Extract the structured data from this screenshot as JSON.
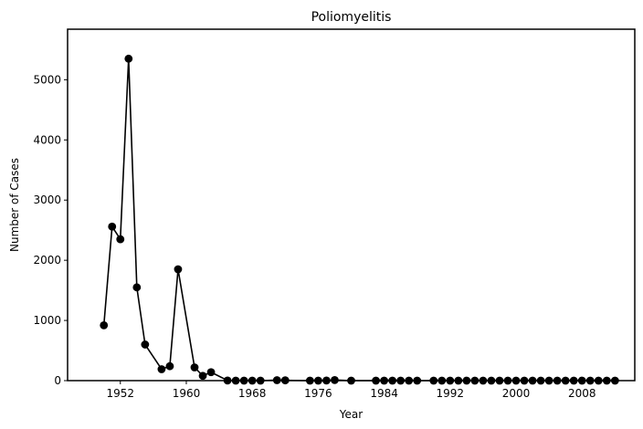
{
  "chart_data": {
    "type": "line",
    "title": "Poliomyelitis",
    "xlabel": "Year",
    "ylabel": "Number of Cases",
    "xlim": [
      1945.6,
      2014.4
    ],
    "ylim": [
      0,
      5840
    ],
    "x_ticks": [
      1952,
      1960,
      1968,
      1976,
      1984,
      1992,
      2000,
      2008
    ],
    "y_ticks": [
      0,
      1000,
      2000,
      3000,
      4000,
      5000
    ],
    "grid": false,
    "legend": "none",
    "line_color": "#000000",
    "marker": "circle",
    "series": [
      {
        "x": [
          1950,
          1951,
          1952,
          1953,
          1954,
          1955,
          1957,
          1958,
          1959,
          1961,
          1962,
          1963,
          1965,
          1966,
          1967,
          1968,
          1969,
          1971,
          1972,
          1975,
          1976,
          1977,
          1978,
          1980,
          1983,
          1984,
          1985,
          1986,
          1987,
          1988,
          1990,
          1991,
          1992,
          1993,
          1994,
          1995,
          1996,
          1997,
          1998,
          1999,
          2000,
          2001,
          2002,
          2003,
          2004,
          2005,
          2006,
          2007,
          2008,
          2009,
          2010,
          2011,
          2012
        ],
        "y": [
          920,
          2560,
          2350,
          5350,
          1550,
          600,
          190,
          240,
          1850,
          220,
          80,
          140,
          2,
          0,
          0,
          0,
          0,
          8,
          5,
          0,
          0,
          2,
          10,
          0,
          0,
          0,
          0,
          0,
          0,
          0,
          0,
          0,
          0,
          0,
          0,
          0,
          0,
          0,
          0,
          0,
          0,
          0,
          0,
          0,
          0,
          0,
          0,
          0,
          0,
          0,
          0,
          0,
          0
        ]
      }
    ]
  }
}
